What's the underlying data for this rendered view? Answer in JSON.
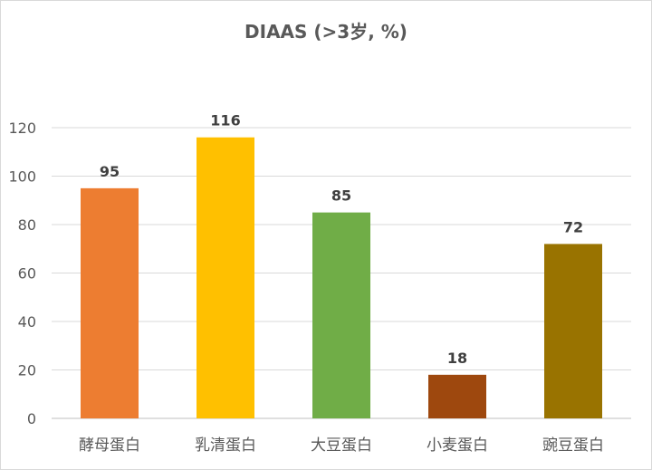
{
  "chart_data": {
    "type": "bar",
    "title": "DIAAS (>3岁, %)",
    "categories": [
      "酵母蛋白",
      "乳清蛋白",
      "大豆蛋白",
      "小麦蛋白",
      "豌豆蛋白"
    ],
    "values": [
      95,
      116,
      85,
      18,
      72
    ],
    "data_labels": [
      "95",
      "116",
      "85",
      "18",
      "72"
    ],
    "colors": [
      "#ED7D31",
      "#FFC000",
      "#70AD47",
      "#9E480E",
      "#997300"
    ],
    "ylim": [
      0,
      120
    ],
    "yticks": [
      0,
      20,
      40,
      60,
      80,
      100,
      120
    ],
    "ytick_labels": [
      "0",
      "20",
      "40",
      "60",
      "80",
      "100",
      "120"
    ],
    "grid": true,
    "xlabel": "",
    "ylabel": ""
  }
}
